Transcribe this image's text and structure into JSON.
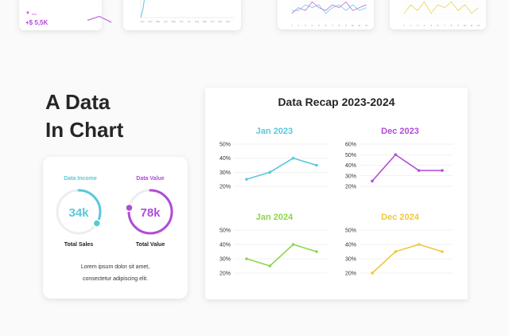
{
  "top_strip": {
    "kpi": {
      "arrow": "▼",
      "sub_label": "xxx",
      "value": "+$ 5,5K",
      "trend": [
        1.0,
        3.0,
        0.0
      ]
    },
    "month_ticks": [
      "Jan",
      "Feb",
      "Mar",
      "Apr",
      "May",
      "Jun",
      "Jul",
      "Aug",
      "Sep",
      "Oct",
      "Nov",
      "Dec"
    ],
    "mini_a": {
      "color": "#c050d8",
      "values": [
        2,
        4,
        3,
        6,
        4,
        3,
        5,
        4,
        6,
        3,
        4,
        5
      ],
      "values2": [
        3,
        3,
        5,
        4,
        5,
        2,
        4,
        5,
        3,
        5,
        3,
        4
      ],
      "ticks": [
        "1",
        "2",
        "3",
        "4",
        "5",
        "6",
        "7",
        "8",
        "9",
        "10",
        "11",
        "12"
      ]
    },
    "mini_b": {
      "color": "#e0d040",
      "values": [
        2,
        5,
        3,
        6,
        2,
        5,
        4,
        6,
        3,
        5,
        2,
        4
      ],
      "ticks": [
        "1",
        "2",
        "3",
        "4",
        "5",
        "6",
        "7",
        "8",
        "9",
        "10",
        "11",
        "12"
      ]
    }
  },
  "hero": {
    "line1": "A Data",
    "line2": "In Chart"
  },
  "stats_card": {
    "items": [
      {
        "label": "Data Income",
        "value": "34k",
        "caption": "Total Sales",
        "color": "#5ac8dc",
        "percent": 34
      },
      {
        "label": "Data Value",
        "value": "78k",
        "caption": "Total Value",
        "color": "#b04cd8",
        "percent": 78
      }
    ],
    "lorem_line1": "Lorem ipsum dolor sit amet,",
    "lorem_line2": "consectetur adipiscing elit."
  },
  "recap": {
    "title": "Data Recap 2023-2024"
  },
  "chart_data": [
    {
      "type": "line",
      "title": "Jan 2023",
      "color": "#5ac8dc",
      "yticks": [
        "50%",
        "40%",
        "30%",
        "20%"
      ],
      "ylim": [
        20,
        50
      ],
      "values": [
        25,
        30,
        40,
        35
      ]
    },
    {
      "type": "line",
      "title": "Dec 2023",
      "color": "#b04cd8",
      "yticks": [
        "60%",
        "50%",
        "40%",
        "30%",
        "20%"
      ],
      "ylim": [
        20,
        60
      ],
      "values": [
        25,
        50,
        35,
        35
      ]
    },
    {
      "type": "line",
      "title": "Jan 2024",
      "color": "#8cd64a",
      "yticks": [
        "50%",
        "40%",
        "30%",
        "20%"
      ],
      "ylim": [
        20,
        50
      ],
      "values": [
        30,
        25,
        40,
        35
      ]
    },
    {
      "type": "line",
      "title": "Dec 2024",
      "color": "#f0c83c",
      "yticks": [
        "50%",
        "40%",
        "30%",
        "20%"
      ],
      "ylim": [
        20,
        50
      ],
      "values": [
        20,
        35,
        40,
        35
      ]
    }
  ]
}
